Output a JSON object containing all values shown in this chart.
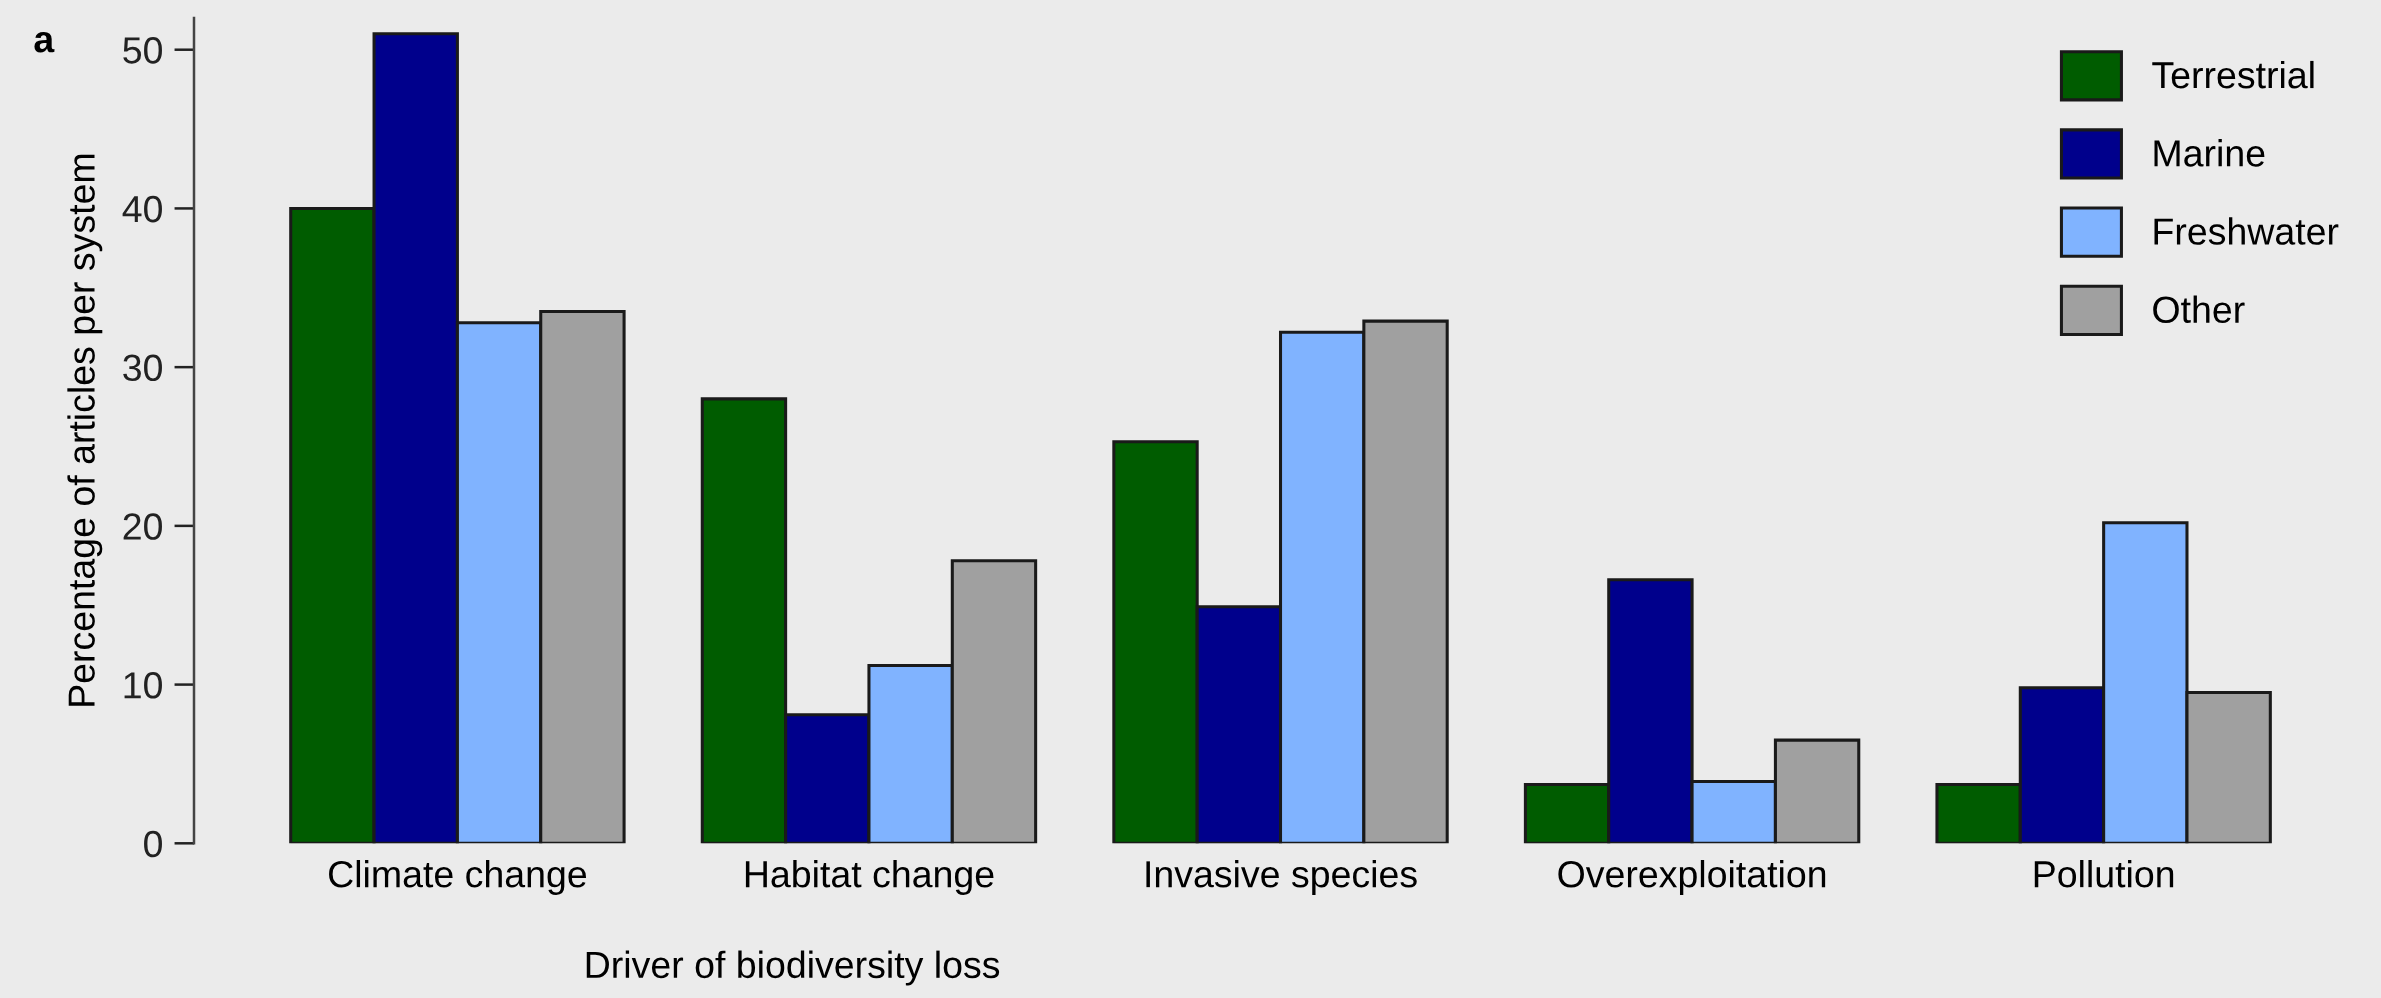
{
  "chart_data": {
    "type": "bar",
    "xlabel": "Driver of biodiversity loss",
    "ylabel": "Percentage of articles per system",
    "annotations": [
      "a"
    ],
    "categories": [
      "Climate change",
      "Habitat change",
      "Invasive species",
      "Overexploitation",
      "Pollution"
    ],
    "series": [
      {
        "name": "Terrestrial",
        "color": "#005c00",
        "values": [
          40,
          28,
          25.3,
          3.7,
          3.7
        ]
      },
      {
        "name": "Marine",
        "color": "#00008c",
        "values": [
          51,
          8.1,
          14.9,
          16.6,
          9.8
        ]
      },
      {
        "name": "Freshwater",
        "color": "#80b3ff",
        "values": [
          32.8,
          11.2,
          32.2,
          3.9,
          20.2
        ]
      },
      {
        "name": "Other",
        "color": "#a0a0a0",
        "values": [
          33.5,
          17.8,
          32.9,
          6.5,
          9.5
        ]
      }
    ],
    "ylim": [
      0,
      52
    ],
    "yticks": [
      0,
      10,
      20,
      30,
      40,
      50
    ],
    "grid": false,
    "legend": "top right"
  }
}
